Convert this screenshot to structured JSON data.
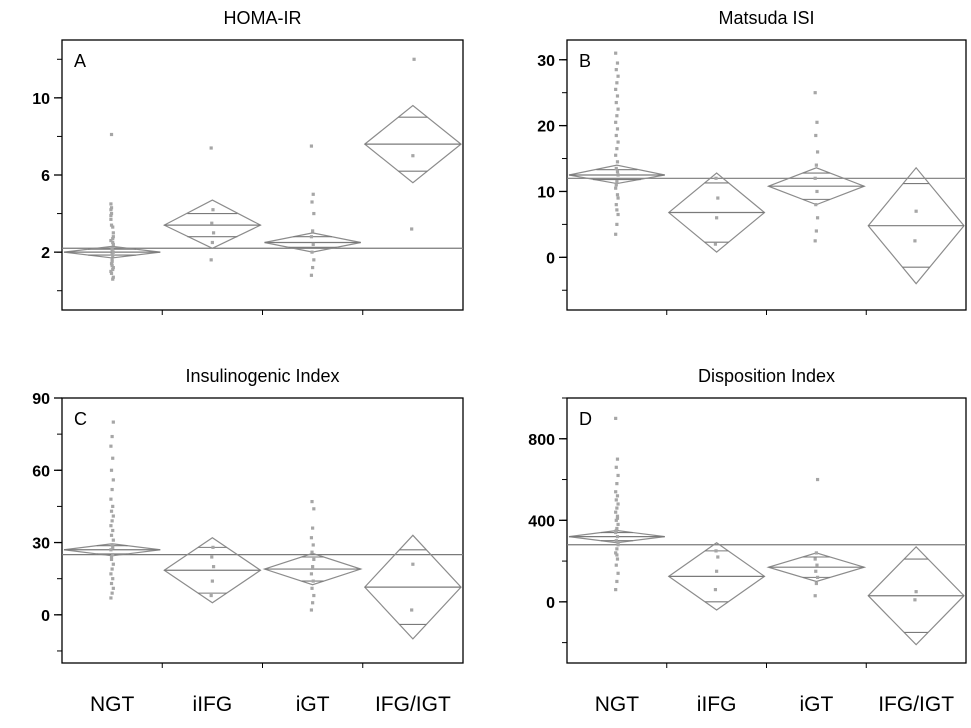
{
  "categories": [
    "NGT",
    "iIFG",
    "iGT",
    "IFG/IGT"
  ],
  "chart_data": [
    {
      "type": "scatter",
      "title": "HOMA-IR",
      "panel_label": "A",
      "ylim": [
        -1,
        13
      ],
      "yticks": [
        2,
        6,
        10
      ],
      "grand_mean": 2.2,
      "diamonds": [
        {
          "category": "NGT",
          "mean": 2.0,
          "ci": [
            1.7,
            2.3
          ],
          "overlap": [
            1.85,
            2.15
          ]
        },
        {
          "category": "iIFG",
          "mean": 3.4,
          "ci": [
            2.2,
            4.7
          ],
          "overlap": [
            2.8,
            4.0
          ]
        },
        {
          "category": "iGT",
          "mean": 2.5,
          "ci": [
            2.0,
            3.0
          ],
          "overlap": [
            2.25,
            2.8
          ]
        },
        {
          "category": "IFG/IGT",
          "mean": 7.6,
          "ci": [
            5.6,
            9.6
          ],
          "overlap": [
            6.2,
            9.0
          ]
        }
      ],
      "points": [
        [
          1.0,
          2.2,
          3.0,
          3.4,
          2.7,
          4.5,
          1.6,
          2.0,
          4.0,
          1.8,
          2.6,
          1.3,
          0.7,
          8.1,
          1.1,
          3.9,
          1.5,
          2.4,
          0.9,
          3.3,
          4.2,
          1.9,
          2.8,
          1.4,
          0.6,
          3.7,
          2.1,
          1.2,
          4.3,
          2.5
        ],
        [
          1.6,
          2.5,
          3.0,
          3.5,
          4.2,
          7.4
        ],
        [
          0.8,
          1.2,
          1.6,
          2.0,
          2.4,
          2.8,
          3.1,
          4.0,
          4.6,
          5.0,
          7.5
        ],
        [
          3.2,
          7.0,
          12.0
        ]
      ]
    },
    {
      "type": "scatter",
      "title": "Matsuda ISI",
      "panel_label": "B",
      "ylim": [
        -8,
        33
      ],
      "yticks": [
        0,
        10,
        20,
        30
      ],
      "grand_mean": 12,
      "diamonds": [
        {
          "category": "NGT",
          "mean": 12.5,
          "ci": [
            11.2,
            14.0
          ],
          "overlap": [
            11.8,
            13.3
          ]
        },
        {
          "category": "iIFG",
          "mean": 6.8,
          "ci": [
            0.8,
            12.8
          ],
          "overlap": [
            2.3,
            11.3
          ]
        },
        {
          "category": "iGT",
          "mean": 10.8,
          "ci": [
            8.0,
            13.6
          ],
          "overlap": [
            8.8,
            12.8
          ]
        },
        {
          "category": "IFG/IGT",
          "mean": 4.8,
          "ci": [
            -4.0,
            13.6
          ],
          "overlap": [
            -1.5,
            11.2
          ]
        }
      ],
      "points": [
        [
          3.5,
          5.0,
          6.5,
          8.0,
          9.5,
          10.5,
          11.5,
          12.5,
          13.5,
          14.5,
          15.5,
          16.5,
          17.5,
          18.5,
          19.5,
          20.5,
          21.5,
          22.5,
          23.5,
          24.5,
          25.5,
          26.5,
          27.5,
          28.5,
          29.5,
          31.0,
          7.2,
          9.0,
          11.0,
          13.0
        ],
        [
          2.0,
          6.0,
          9.0,
          12.0
        ],
        [
          2.5,
          4.0,
          6.0,
          8.0,
          10.0,
          12.0,
          14.0,
          16.0,
          18.5,
          20.5,
          25.0
        ],
        [
          2.5,
          7.0
        ]
      ]
    },
    {
      "type": "scatter",
      "title": "Insulinogenic Index",
      "panel_label": "C",
      "ylim": [
        -20,
        90
      ],
      "yticks": [
        0,
        30,
        60,
        90
      ],
      "grand_mean": 25,
      "diamonds": [
        {
          "category": "NGT",
          "mean": 27.0,
          "ci": [
            24.5,
            29.5
          ],
          "overlap": [
            25.3,
            28.7
          ]
        },
        {
          "category": "iIFG",
          "mean": 18.5,
          "ci": [
            5.0,
            32.0
          ],
          "overlap": [
            9.0,
            28.0
          ]
        },
        {
          "category": "iGT",
          "mean": 19.0,
          "ci": [
            12.5,
            25.5
          ],
          "overlap": [
            14.0,
            24.0
          ]
        },
        {
          "category": "IFG/IGT",
          "mean": 11.5,
          "ci": [
            -10.0,
            33.0
          ],
          "overlap": [
            -4.0,
            27.0
          ]
        }
      ],
      "points": [
        [
          7,
          9,
          11,
          13,
          15,
          17,
          19,
          21,
          23,
          25,
          27,
          29,
          31,
          33,
          35,
          37,
          39,
          41,
          43,
          45,
          48,
          52,
          56,
          60,
          65,
          70,
          74,
          80,
          24,
          28
        ],
        [
          8,
          14,
          20,
          24,
          28
        ],
        [
          2,
          5,
          8,
          11,
          14,
          17,
          20,
          23,
          26,
          29,
          32,
          36,
          44,
          47
        ],
        [
          2,
          21
        ]
      ]
    },
    {
      "type": "scatter",
      "title": "Disposition Index",
      "panel_label": "D",
      "ylim": [
        -300,
        1000
      ],
      "yticks": [
        0,
        400,
        800
      ],
      "grand_mean": 280,
      "diamonds": [
        {
          "category": "NGT",
          "mean": 320,
          "ci": [
            290,
            350
          ],
          "overlap": [
            300,
            340
          ]
        },
        {
          "category": "iIFG",
          "mean": 125,
          "ci": [
            -40,
            290
          ],
          "overlap": [
            0,
            250
          ]
        },
        {
          "category": "iGT",
          "mean": 170,
          "ci": [
            100,
            240
          ],
          "overlap": [
            120,
            220
          ]
        },
        {
          "category": "IFG/IGT",
          "mean": 30,
          "ci": [
            -210,
            270
          ],
          "overlap": [
            -150,
            210
          ]
        }
      ],
      "points": [
        [
          60,
          100,
          140,
          180,
          210,
          240,
          260,
          280,
          300,
          320,
          340,
          360,
          380,
          400,
          420,
          440,
          460,
          480,
          500,
          520,
          540,
          580,
          620,
          660,
          700,
          900,
          230,
          290,
          350,
          410
        ],
        [
          60,
          150,
          220,
          250
        ],
        [
          30,
          90,
          120,
          150,
          180,
          210,
          240,
          600
        ],
        [
          10,
          50
        ]
      ]
    }
  ]
}
